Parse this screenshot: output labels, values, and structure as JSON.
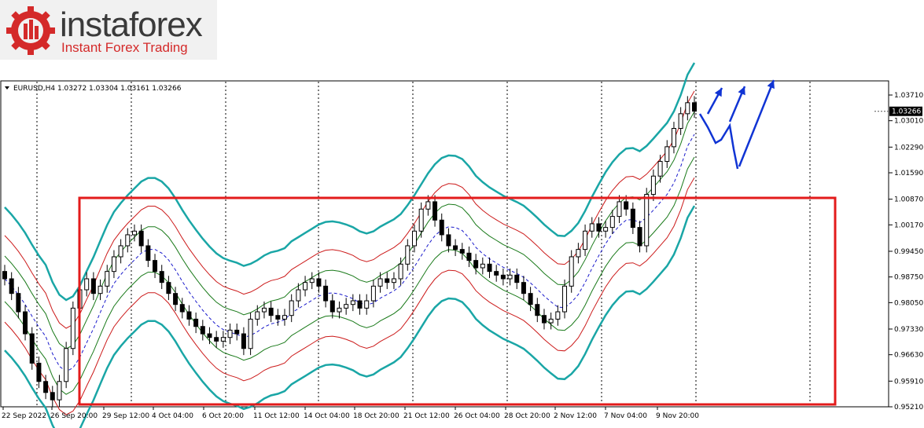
{
  "logo": {
    "name": "instaforex",
    "tagline": "Instant Forex Trading"
  },
  "chart_data": {
    "type": "candlestick",
    "symbol_header": "EURUSD,H4  1.03272 1.03304 1.03161 1.03266",
    "current_price_label": "1.03266",
    "current_price": 1.03266,
    "y_ticks": [
      "1.03710",
      "1.03010",
      "1.02290",
      "1.01590",
      "1.00870",
      "1.00170",
      "0.99450",
      "0.98750",
      "0.98050",
      "0.97330",
      "0.96630",
      "0.95910",
      "0.95210"
    ],
    "ylim": [
      0.9521,
      1.0371
    ],
    "x_ticks": [
      "22 Sep 2022",
      "26 Sep 20:00",
      "29 Sep 12:00",
      "4 Oct 04:00",
      "6 Oct 20:00",
      "11 Oct 12:00",
      "14 Oct 04:00",
      "18 Oct 20:00",
      "21 Oct 12:00",
      "26 Oct 04:00",
      "28 Oct 20:00",
      "2 Nov 12:00",
      "7 Nov 04:00",
      "9 Nov 20:00"
    ],
    "grid": "vertical dotted",
    "close_series": [
      0.987,
      0.983,
      0.978,
      0.972,
      0.964,
      0.959,
      0.956,
      0.954,
      0.959,
      0.968,
      0.979,
      0.984,
      0.987,
      0.983,
      0.985,
      0.989,
      0.993,
      0.996,
      0.999,
      1.0,
      0.996,
      0.992,
      0.989,
      0.986,
      0.983,
      0.98,
      0.978,
      0.976,
      0.974,
      0.972,
      0.971,
      0.97,
      0.971,
      0.973,
      0.972,
      0.968,
      0.976,
      0.978,
      0.979,
      0.977,
      0.976,
      0.977,
      0.981,
      0.984,
      0.986,
      0.987,
      0.985,
      0.981,
      0.978,
      0.979,
      0.98,
      0.981,
      0.979,
      0.981,
      0.985,
      0.987,
      0.986,
      0.987,
      0.991,
      0.996,
      1.0,
      1.006,
      1.008,
      1.003,
      0.999,
      0.996,
      0.995,
      0.994,
      0.992,
      0.99,
      0.991,
      0.989,
      0.988,
      0.987,
      0.988,
      0.986,
      0.983,
      0.98,
      0.977,
      0.975,
      0.976,
      0.978,
      0.985,
      0.993,
      0.995,
      1.0,
      1.002,
      1.0,
      1.001,
      1.004,
      1.008,
      1.006,
      1.001,
      0.996,
      1.01,
      1.015,
      1.019,
      1.023,
      1.028,
      1.032,
      1.035,
      1.0327
    ],
    "bands": [
      {
        "name": "ma",
        "color": "#1a1acc",
        "dash": "4,3",
        "offset": 0
      },
      {
        "name": "env1",
        "color": "#1a7a1a",
        "offset": 0.0062
      },
      {
        "name": "env2",
        "color": "#cc1a1a",
        "offset": 0.0118
      },
      {
        "name": "env3",
        "color": "#1aa6a6",
        "offset": 0.0195
      }
    ],
    "annotation": {
      "box_color": "#e31b1b",
      "arrow_color": "#1034d4"
    }
  }
}
